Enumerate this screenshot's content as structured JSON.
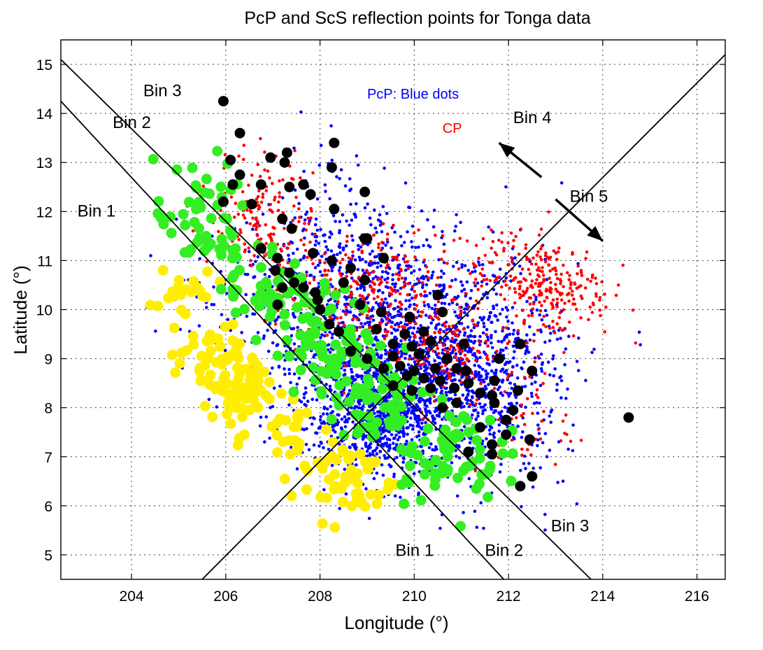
{
  "chart_data": {
    "type": "scatter",
    "title": "PcP and ScS reflection points for Tonga data",
    "xlabel": "Longitude (°)",
    "ylabel": "Latitude (°)",
    "xlim": [
      202.5,
      216.6
    ],
    "ylim": [
      4.5,
      15.5
    ],
    "xticks": [
      204,
      206,
      208,
      210,
      212,
      214,
      216
    ],
    "yticks": [
      5,
      6,
      7,
      8,
      9,
      10,
      11,
      12,
      13,
      14,
      15
    ],
    "grid": true,
    "colors": {
      "blue_dots": "#0000ff",
      "red_dots": "#ff0000",
      "black_dots": "#000000",
      "green_dots": "#33ee22",
      "yellow_dots": "#ffee00",
      "lines": "#000000"
    },
    "annotations": {
      "pcp_blue": "PcP: Blue dots",
      "cp": "CP",
      "bin1_upper": "Bin 1",
      "bin2_upper": "Bin 2",
      "bin3_upper": "Bin 3",
      "bin4": "Bin 4",
      "bin5": "Bin 5",
      "bin1_lower": "Bin 1",
      "bin2_lower": "Bin 2",
      "bin3_lower": "Bin 3"
    },
    "label_positions": {
      "pcp_blue": [
        209.0,
        14.3
      ],
      "cp": [
        210.6,
        13.6
      ],
      "bin1_upper": [
        202.85,
        11.9
      ],
      "bin2_upper": [
        203.6,
        13.7
      ],
      "bin3_upper": [
        204.25,
        14.35
      ],
      "bin4": [
        212.1,
        13.8
      ],
      "bin5": [
        213.3,
        12.2
      ],
      "bin1_lower": [
        209.6,
        4.98
      ],
      "bin2_lower": [
        211.5,
        4.98
      ],
      "bin3_lower": [
        212.9,
        5.48
      ]
    },
    "boundary_lines": [
      {
        "x": [
          202.5,
          211.9
        ],
        "y": [
          14.25,
          4.5
        ]
      },
      {
        "x": [
          202.5,
          213.75
        ],
        "y": [
          15.1,
          4.5
        ]
      },
      {
        "x": [
          205.5,
          216.6
        ],
        "y": [
          4.5,
          15.2
        ]
      }
    ],
    "arrows": [
      {
        "from": [
          212.7,
          12.7
        ],
        "to": [
          211.8,
          13.4
        ]
      },
      {
        "from": [
          213.0,
          12.25
        ],
        "to": [
          214.0,
          11.4
        ]
      }
    ],
    "series": [
      {
        "color_key": "blue_dots",
        "marker_size": "small",
        "cluster_centers": [
          [
            209.3,
            7.9
          ],
          [
            208.6,
            8.6
          ],
          [
            210.3,
            9.0
          ],
          [
            211.1,
            8.3
          ],
          [
            210.9,
            10.0
          ],
          [
            208.8,
            10.7
          ],
          [
            211.8,
            9.2
          ],
          [
            207.4,
            10.2
          ],
          [
            209.9,
            7.3
          ],
          [
            208.2,
            7.2
          ]
        ],
        "clusters": [
          {
            "cx": 209.3,
            "cy": 7.9,
            "sx": 0.75,
            "sy": 0.65,
            "n": 900
          },
          {
            "cx": 210.5,
            "cy": 9.2,
            "sx": 1.2,
            "sy": 1.0,
            "n": 850
          },
          {
            "cx": 208.7,
            "cy": 10.5,
            "sx": 0.9,
            "sy": 0.9,
            "n": 350
          },
          {
            "cx": 211.6,
            "cy": 8.3,
            "sx": 0.8,
            "sy": 1.0,
            "n": 400
          },
          {
            "cx": 207.6,
            "cy": 9.2,
            "sx": 0.9,
            "sy": 1.0,
            "n": 250
          },
          {
            "cx": 208.3,
            "cy": 12.2,
            "sx": 0.6,
            "sy": 0.8,
            "n": 60
          },
          {
            "cx": 206.2,
            "cy": 10.6,
            "sx": 0.8,
            "sy": 0.8,
            "n": 60
          }
        ]
      },
      {
        "color_key": "red_dots",
        "marker_size": "small",
        "clusters": [
          {
            "cx": 206.8,
            "cy": 12.0,
            "sx": 0.55,
            "sy": 0.6,
            "n": 170
          },
          {
            "cx": 208.8,
            "cy": 10.3,
            "sx": 0.9,
            "sy": 0.6,
            "n": 260
          },
          {
            "cx": 210.5,
            "cy": 9.2,
            "sx": 0.6,
            "sy": 0.6,
            "n": 180
          },
          {
            "cx": 213.0,
            "cy": 10.4,
            "sx": 0.6,
            "sy": 0.5,
            "n": 200
          },
          {
            "cx": 211.9,
            "cy": 10.9,
            "sx": 0.6,
            "sy": 0.4,
            "n": 90
          },
          {
            "cx": 212.3,
            "cy": 7.7,
            "sx": 0.5,
            "sy": 0.6,
            "n": 60
          }
        ]
      },
      {
        "color_key": "black_dots",
        "marker_size": "large",
        "points": [
          [
            205.95,
            14.25
          ],
          [
            206.3,
            13.6
          ],
          [
            208.3,
            13.4
          ],
          [
            207.3,
            13.2
          ],
          [
            206.95,
            13.1
          ],
          [
            206.1,
            13.05
          ],
          [
            207.25,
            13.0
          ],
          [
            208.25,
            12.9
          ],
          [
            206.3,
            12.75
          ],
          [
            206.75,
            12.55
          ],
          [
            206.15,
            12.55
          ],
          [
            207.65,
            12.55
          ],
          [
            207.35,
            12.5
          ],
          [
            207.8,
            12.35
          ],
          [
            208.95,
            12.4
          ],
          [
            205.95,
            12.2
          ],
          [
            206.55,
            12.15
          ],
          [
            208.3,
            12.05
          ],
          [
            207.2,
            11.85
          ],
          [
            207.4,
            11.65
          ],
          [
            208.95,
            11.45
          ],
          [
            209.0,
            11.45
          ],
          [
            206.75,
            11.25
          ],
          [
            207.85,
            11.15
          ],
          [
            207.1,
            11.05
          ],
          [
            208.25,
            11.0
          ],
          [
            209.35,
            11.05
          ],
          [
            207.05,
            10.8
          ],
          [
            207.35,
            10.75
          ],
          [
            207.45,
            10.55
          ],
          [
            208.65,
            10.85
          ],
          [
            207.2,
            10.45
          ],
          [
            207.65,
            10.45
          ],
          [
            207.9,
            10.35
          ],
          [
            208.5,
            10.55
          ],
          [
            208.95,
            10.6
          ],
          [
            207.1,
            10.1
          ],
          [
            207.95,
            10.2
          ],
          [
            208.85,
            10.1
          ],
          [
            210.5,
            10.3
          ],
          [
            208.0,
            10.0
          ],
          [
            208.2,
            9.7
          ],
          [
            209.3,
            9.95
          ],
          [
            209.9,
            9.85
          ],
          [
            210.6,
            9.95
          ],
          [
            208.4,
            9.55
          ],
          [
            209.2,
            9.6
          ],
          [
            209.8,
            9.5
          ],
          [
            210.2,
            9.55
          ],
          [
            209.55,
            9.3
          ],
          [
            209.95,
            9.25
          ],
          [
            210.35,
            9.35
          ],
          [
            211.05,
            9.3
          ],
          [
            212.25,
            9.3
          ],
          [
            208.65,
            9.15
          ],
          [
            209.0,
            9.0
          ],
          [
            209.55,
            9.05
          ],
          [
            210.1,
            9.1
          ],
          [
            210.7,
            9.0
          ],
          [
            211.8,
            9.0
          ],
          [
            209.35,
            8.8
          ],
          [
            209.7,
            8.85
          ],
          [
            210.0,
            8.75
          ],
          [
            210.45,
            8.8
          ],
          [
            210.9,
            8.8
          ],
          [
            211.1,
            8.75
          ],
          [
            212.5,
            8.75
          ],
          [
            209.85,
            8.65
          ],
          [
            210.2,
            8.6
          ],
          [
            210.55,
            8.55
          ],
          [
            211.15,
            8.5
          ],
          [
            211.7,
            8.55
          ],
          [
            209.55,
            8.45
          ],
          [
            209.95,
            8.35
          ],
          [
            210.35,
            8.4
          ],
          [
            210.85,
            8.4
          ],
          [
            211.4,
            8.3
          ],
          [
            211.65,
            8.25
          ],
          [
            212.2,
            8.35
          ],
          [
            210.9,
            8.1
          ],
          [
            211.7,
            8.1
          ],
          [
            210.6,
            8.0
          ],
          [
            212.1,
            7.95
          ],
          [
            214.55,
            7.8
          ],
          [
            211.95,
            7.75
          ],
          [
            211.4,
            7.6
          ],
          [
            211.95,
            7.45
          ],
          [
            212.45,
            7.35
          ],
          [
            211.65,
            7.25
          ],
          [
            211.15,
            7.1
          ],
          [
            211.65,
            7.05
          ],
          [
            212.5,
            6.6
          ],
          [
            212.25,
            6.4
          ]
        ]
      },
      {
        "color_key": "green_dots",
        "marker_size": "large",
        "clusters": [
          {
            "cx": 205.5,
            "cy": 11.8,
            "sx": 0.5,
            "sy": 0.6,
            "n": 55
          },
          {
            "cx": 206.9,
            "cy": 10.5,
            "sx": 0.5,
            "sy": 0.5,
            "n": 45
          },
          {
            "cx": 208.2,
            "cy": 9.3,
            "sx": 0.5,
            "sy": 0.5,
            "n": 70
          },
          {
            "cx": 209.3,
            "cy": 8.3,
            "sx": 0.5,
            "sy": 0.5,
            "n": 60
          },
          {
            "cx": 210.6,
            "cy": 7.1,
            "sx": 0.6,
            "sy": 0.5,
            "n": 70
          }
        ]
      },
      {
        "color_key": "yellow_dots",
        "marker_size": "large",
        "clusters": [
          {
            "cx": 206.2,
            "cy": 8.5,
            "sx": 0.35,
            "sy": 0.5,
            "n": 85
          },
          {
            "cx": 205.0,
            "cy": 10.2,
            "sx": 0.35,
            "sy": 0.5,
            "n": 25
          },
          {
            "cx": 208.5,
            "cy": 6.6,
            "sx": 0.55,
            "sy": 0.45,
            "n": 55
          },
          {
            "cx": 207.3,
            "cy": 7.4,
            "sx": 0.3,
            "sy": 0.4,
            "n": 20
          },
          {
            "cx": 205.3,
            "cy": 9.2,
            "sx": 0.25,
            "sy": 0.35,
            "n": 12
          }
        ]
      }
    ]
  }
}
